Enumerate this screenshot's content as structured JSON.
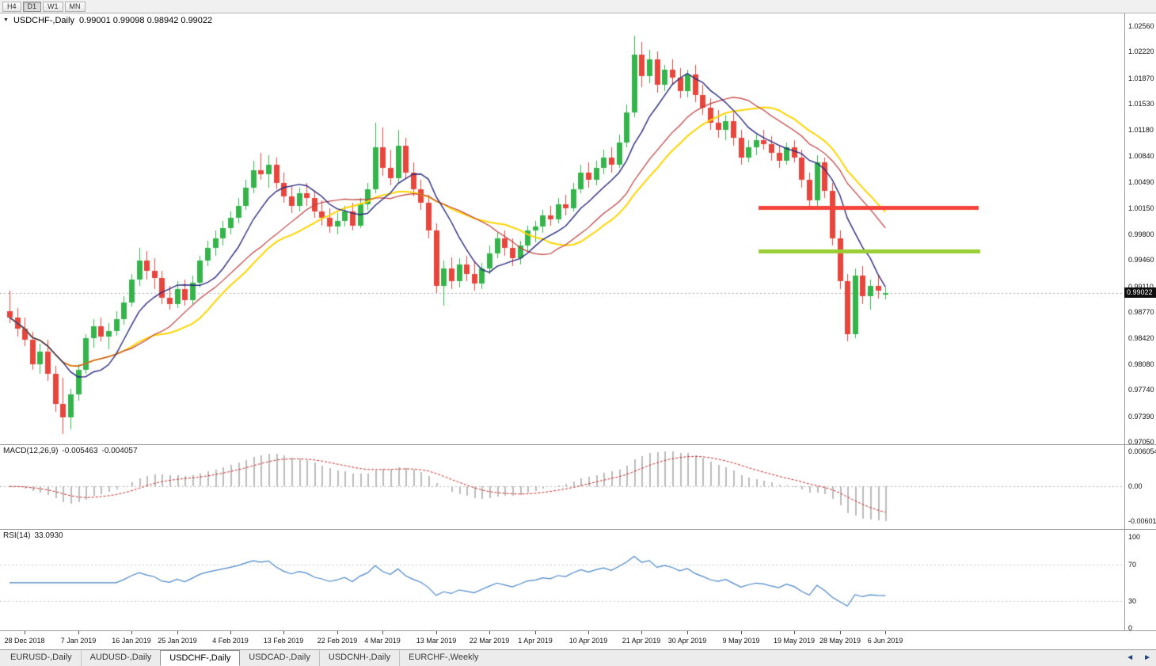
{
  "icons": {
    "dropdown": "▼",
    "scroll_left": "◄",
    "scroll_right": "►"
  },
  "toolbar": {
    "timeframes": [
      {
        "label": "H4",
        "active": false
      },
      {
        "label": "D1",
        "active": true
      },
      {
        "label": "W1",
        "active": false
      },
      {
        "label": "MN",
        "active": false
      }
    ]
  },
  "chart": {
    "symbol_title": "USDCHF-,Daily",
    "ohlc_text": "0.99001 0.99098 0.98942 0.99022",
    "current_price": "0.99022",
    "price_axis_labels": [
      "1.02560",
      "1.02220",
      "1.01870",
      "1.01530",
      "1.01180",
      "1.00840",
      "1.00490",
      "1.00150",
      "0.99800",
      "0.99460",
      "0.99110",
      "0.98770",
      "0.98420",
      "0.98080",
      "0.97740",
      "0.97390",
      "0.97050"
    ]
  },
  "macd": {
    "name": "MACD(12,26,9)",
    "value_main": "-0.005463",
    "value_signal": "-0.004057",
    "axis_labels": [
      {
        "text": "0.006054",
        "value": 0.006054
      },
      {
        "text": "0.00",
        "value": 0
      },
      {
        "text": "-0.006011",
        "value": -0.006011
      }
    ]
  },
  "rsi": {
    "name": "RSI(14)",
    "value": "33.0930",
    "axis_labels": [
      {
        "text": "100",
        "value": 100
      },
      {
        "text": "70",
        "value": 70
      },
      {
        "text": "30",
        "value": 30
      },
      {
        "text": "0",
        "value": 0
      }
    ]
  },
  "tabs": {
    "items": [
      {
        "label": "EURUSD-,Daily",
        "active": false
      },
      {
        "label": "AUDUSD-,Daily",
        "active": false
      },
      {
        "label": "USDCHF-,Daily",
        "active": true
      },
      {
        "label": "USDCAD-,Daily",
        "active": false
      },
      {
        "label": "USDCNH-,Daily",
        "active": false
      },
      {
        "label": "EURCHF-,Weekly",
        "active": false
      }
    ]
  },
  "chart_data": {
    "type": "candlestick",
    "title": "USDCHF-,Daily",
    "open": 0.99001,
    "high": 0.99098,
    "low": 0.98942,
    "close": 0.99022,
    "current_price": 0.99022,
    "y_range": [
      0.9705,
      1.0256
    ],
    "colors": {
      "bull": "#35b44b",
      "bear": "#e8463c",
      "ma_fast": "#28287e",
      "ma_mid": "#c03a3a",
      "ma_slow": "#ffd400",
      "macd_hist": "#bcbcbc",
      "macd_signal": "#cc2222",
      "rsi": "#4a86c8",
      "current_price_line": "#a8a8a8",
      "level_line": "#c9c9c9"
    },
    "moving_averages": [
      {
        "period": 20,
        "color_key": "ma_slow",
        "width": 2
      },
      {
        "period": 16,
        "color_key": "ma_mid",
        "width": 1.2
      },
      {
        "period": 8,
        "color_key": "ma_fast",
        "width": 1.4
      }
    ],
    "overlay_lines": [
      {
        "name": "resistance-line",
        "price": 1.0015,
        "color": "#f4433a",
        "x_from": 958,
        "x_to": 1236,
        "thickness": 5
      },
      {
        "name": "support-line",
        "price": 0.9957,
        "color": "#9acd32",
        "x_from": 958,
        "x_to": 1238,
        "thickness": 5
      }
    ],
    "indicators": {
      "macd": {
        "fast": 12,
        "slow": 26,
        "signal": 9,
        "value": -0.005463,
        "signal_value": -0.004057,
        "y_range": [
          -0.006011,
          0.006054
        ]
      },
      "rsi": {
        "period": 14,
        "value": 33.093,
        "levels": [
          70,
          30
        ],
        "y_range": [
          0,
          100
        ]
      }
    },
    "x_labels": [
      {
        "text": "28 Dec 2018",
        "index": 2
      },
      {
        "text": "7 Jan 2019",
        "index": 9
      },
      {
        "text": "16 Jan 2019",
        "index": 16
      },
      {
        "text": "25 Jan 2019",
        "index": 22
      },
      {
        "text": "4 Feb 2019",
        "index": 29
      },
      {
        "text": "13 Feb 2019",
        "index": 36
      },
      {
        "text": "22 Feb 2019",
        "index": 43
      },
      {
        "text": "4 Mar 2019",
        "index": 49
      },
      {
        "text": "13 Mar 2019",
        "index": 56
      },
      {
        "text": "22 Mar 2019",
        "index": 63
      },
      {
        "text": "1 Apr 2019",
        "index": 69
      },
      {
        "text": "10 Apr 2019",
        "index": 76
      },
      {
        "text": "21 Apr 2019",
        "index": 83
      },
      {
        "text": "30 Apr 2019",
        "index": 89
      },
      {
        "text": "9 May 2019",
        "index": 96
      },
      {
        "text": "19 May 2019",
        "index": 103
      },
      {
        "text": "28 May 2019",
        "index": 109
      },
      {
        "text": "6 Jun 2019",
        "index": 115
      }
    ],
    "candles": [
      [
        0.9878,
        0.9905,
        0.9862,
        0.987
      ],
      [
        0.987,
        0.9882,
        0.9845,
        0.9855
      ],
      [
        0.9855,
        0.987,
        0.9832,
        0.984
      ],
      [
        0.984,
        0.9851,
        0.98,
        0.9808
      ],
      [
        0.9808,
        0.9835,
        0.9795,
        0.9825
      ],
      [
        0.9825,
        0.984,
        0.9786,
        0.9795
      ],
      [
        0.9795,
        0.9806,
        0.9745,
        0.9755
      ],
      [
        0.9755,
        0.979,
        0.9716,
        0.9738
      ],
      [
        0.9738,
        0.9775,
        0.9722,
        0.9768
      ],
      [
        0.9768,
        0.9808,
        0.976,
        0.98
      ],
      [
        0.98,
        0.9848,
        0.9795,
        0.9842
      ],
      [
        0.9842,
        0.9868,
        0.983,
        0.9858
      ],
      [
        0.9858,
        0.987,
        0.9838,
        0.9845
      ],
      [
        0.9845,
        0.9862,
        0.9828,
        0.9852
      ],
      [
        0.9852,
        0.9878,
        0.9846,
        0.9868
      ],
      [
        0.9868,
        0.9898,
        0.986,
        0.989
      ],
      [
        0.989,
        0.9928,
        0.9884,
        0.992
      ],
      [
        0.992,
        0.9962,
        0.9912,
        0.9945
      ],
      [
        0.9945,
        0.9958,
        0.992,
        0.9932
      ],
      [
        0.9932,
        0.9948,
        0.9908,
        0.9922
      ],
      [
        0.9922,
        0.9932,
        0.9888,
        0.9896
      ],
      [
        0.9896,
        0.9912,
        0.988,
        0.9888
      ],
      [
        0.9888,
        0.9918,
        0.9882,
        0.9908
      ],
      [
        0.9908,
        0.992,
        0.9885,
        0.9893
      ],
      [
        0.9893,
        0.9925,
        0.9888,
        0.9916
      ],
      [
        0.9916,
        0.9952,
        0.991,
        0.9945
      ],
      [
        0.9945,
        0.9972,
        0.9938,
        0.9962
      ],
      [
        0.9962,
        0.9985,
        0.9952,
        0.9975
      ],
      [
        0.9975,
        0.9998,
        0.9965,
        0.9988
      ],
      [
        0.9988,
        1.001,
        0.998,
        1.0002
      ],
      [
        1.0002,
        1.0028,
        0.9995,
        1.0018
      ],
      [
        1.0018,
        1.0052,
        1.0012,
        1.0042
      ],
      [
        1.0042,
        1.0078,
        1.0035,
        1.0065
      ],
      [
        1.0065,
        1.0088,
        1.0052,
        1.006
      ],
      [
        1.006,
        1.0085,
        1.0042,
        1.0072
      ],
      [
        1.0072,
        1.0082,
        1.004,
        1.0048
      ],
      [
        1.0048,
        1.0062,
        1.0022,
        1.003
      ],
      [
        1.003,
        1.0045,
        1.0008,
        1.0018
      ],
      [
        1.0018,
        1.0042,
        1.001,
        1.0035
      ],
      [
        1.0035,
        1.0048,
        1.0018,
        1.0028
      ],
      [
        1.0028,
        1.0038,
        1.0002,
        1.001
      ],
      [
        1.001,
        1.0025,
        0.9992,
        1.0002
      ],
      [
        1.0002,
        1.0015,
        0.9982,
        0.999
      ],
      [
        0.999,
        1.0008,
        0.998,
        0.9998
      ],
      [
        0.9998,
        1.0018,
        0.999,
        1.001
      ],
      [
        1.001,
        1.0022,
        0.9985,
        0.9992
      ],
      [
        0.9992,
        1.0028,
        0.9988,
        1.002
      ],
      [
        1.002,
        1.0048,
        1.0012,
        1.004
      ],
      [
        1.004,
        1.0128,
        1.0035,
        1.0095
      ],
      [
        1.0095,
        1.0122,
        1.0058,
        1.0068
      ],
      [
        1.0068,
        1.0092,
        1.0045,
        1.0055
      ],
      [
        1.0055,
        1.0118,
        1.0048,
        1.0098
      ],
      [
        1.0098,
        1.0108,
        1.0055,
        1.0062
      ],
      [
        1.0062,
        1.0075,
        1.003,
        1.004
      ],
      [
        1.004,
        1.0052,
        1.0012,
        1.0022
      ],
      [
        1.0022,
        1.0032,
        0.9975,
        0.9985
      ],
      [
        0.9985,
        0.9995,
        0.9902,
        0.9912
      ],
      [
        0.9912,
        0.9945,
        0.9885,
        0.9935
      ],
      [
        0.9935,
        0.995,
        0.9908,
        0.9918
      ],
      [
        0.9918,
        0.9948,
        0.991,
        0.994
      ],
      [
        0.994,
        0.9952,
        0.9918,
        0.9928
      ],
      [
        0.9928,
        0.9945,
        0.9905,
        0.9915
      ],
      [
        0.9915,
        0.9942,
        0.9908,
        0.9935
      ],
      [
        0.9935,
        0.9965,
        0.9928,
        0.9955
      ],
      [
        0.9955,
        0.9982,
        0.9948,
        0.9975
      ],
      [
        0.9975,
        0.9985,
        0.9952,
        0.9962
      ],
      [
        0.9962,
        0.9975,
        0.9938,
        0.9948
      ],
      [
        0.9948,
        0.9972,
        0.994,
        0.9965
      ],
      [
        0.9965,
        0.9992,
        0.9958,
        0.9985
      ],
      [
        0.9985,
        0.9998,
        0.997,
        0.999
      ],
      [
        0.999,
        1.0012,
        0.9982,
        1.0005
      ],
      [
        1.0005,
        1.0018,
        0.9992,
        1.0
      ],
      [
        1.0,
        1.0028,
        0.9995,
        1.002
      ],
      [
        1.002,
        1.0032,
        1.0005,
        1.0015
      ],
      [
        1.0015,
        1.0048,
        1.001,
        1.004
      ],
      [
        1.004,
        1.0072,
        1.0035,
        1.0062
      ],
      [
        1.0062,
        1.0075,
        1.0042,
        1.0052
      ],
      [
        1.0052,
        1.0078,
        1.0045,
        1.0068
      ],
      [
        1.0068,
        1.0092,
        1.006,
        1.0082
      ],
      [
        1.0082,
        1.0095,
        1.0062,
        1.0072
      ],
      [
        1.0072,
        1.0112,
        1.0068,
        1.0102
      ],
      [
        1.0102,
        1.0152,
        1.0095,
        1.0142
      ],
      [
        1.0142,
        1.0243,
        1.0135,
        1.0218
      ],
      [
        1.0218,
        1.0235,
        1.0175,
        1.019
      ],
      [
        1.019,
        1.0225,
        1.018,
        1.0212
      ],
      [
        1.0212,
        1.0222,
        1.0168,
        1.0178
      ],
      [
        1.0178,
        1.0205,
        1.017,
        1.0198
      ],
      [
        1.0198,
        1.0212,
        1.0178,
        1.0188
      ],
      [
        1.0188,
        1.02,
        1.016,
        1.017
      ],
      [
        1.017,
        1.0198,
        1.0162,
        1.0192
      ],
      [
        1.0192,
        1.0205,
        1.0155,
        1.0165
      ],
      [
        1.0165,
        1.0178,
        1.0138,
        1.0148
      ],
      [
        1.0148,
        1.016,
        1.0118,
        1.0128
      ],
      [
        1.0128,
        1.0145,
        1.0108,
        1.0118
      ],
      [
        1.0118,
        1.0138,
        1.0105,
        1.013
      ],
      [
        1.013,
        1.0142,
        1.0098,
        1.0108
      ],
      [
        1.0108,
        1.0118,
        1.0072,
        1.0082
      ],
      [
        1.0082,
        1.0105,
        1.0075,
        1.0095
      ],
      [
        1.0095,
        1.0112,
        1.0085,
        1.0105
      ],
      [
        1.0105,
        1.0118,
        1.0092,
        1.01
      ],
      [
        1.01,
        1.011,
        1.0078,
        1.0088
      ],
      [
        1.0088,
        1.0098,
        1.0068,
        1.0078
      ],
      [
        1.0078,
        1.0102,
        1.0072,
        1.0095
      ],
      [
        1.0095,
        1.0105,
        1.0075,
        1.0082
      ],
      [
        1.0082,
        1.0092,
        1.0042,
        1.0052
      ],
      [
        1.0052,
        1.0062,
        1.0015,
        1.0025
      ],
      [
        1.0025,
        1.0085,
        1.0018,
        1.0075
      ],
      [
        1.0075,
        1.0082,
        1.0028,
        1.0038
      ],
      [
        1.0038,
        1.0048,
        0.9965,
        0.9975
      ],
      [
        0.9975,
        0.9985,
        0.9908,
        0.9918
      ],
      [
        0.9918,
        0.9928,
        0.9838,
        0.9848
      ],
      [
        0.9848,
        0.9935,
        0.9842,
        0.9925
      ],
      [
        0.9925,
        0.9938,
        0.9888,
        0.9898
      ],
      [
        0.9898,
        0.992,
        0.988,
        0.9912
      ],
      [
        0.9912,
        0.9925,
        0.9895,
        0.9905
      ],
      [
        0.99001,
        0.99098,
        0.98942,
        0.99022
      ]
    ]
  }
}
